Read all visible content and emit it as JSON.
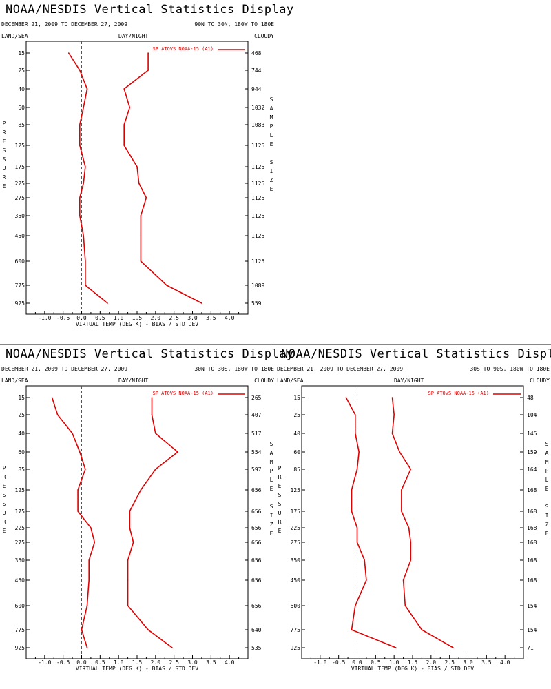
{
  "header": {
    "title": "NOAA/NESDIS Vertical Statistics Display",
    "date_range": "DECEMBER 21, 2009 TO DECEMBER 27, 2009",
    "land_sea": "LAND/SEA",
    "day_night": "DAY/NIGHT",
    "cloudy": "CLOUDY",
    "left_axis_label": "PRESSURE",
    "right_axis_label": "SAMPLE SIZE"
  },
  "chart_data": [
    {
      "type": "line",
      "region": "90N TO 30N, 180W TO 180E",
      "legend": "SP ATOVS NOAA-15 (A1)",
      "xlabel": "VIRTUAL TEMP (DEG K) - BIAS / STD DEV",
      "xlim": [
        -1.5,
        4.5
      ],
      "xticks": [
        "-1.0",
        "-0.5",
        "0.0",
        "0.5",
        "1.0",
        "1.5",
        "2.0",
        "2.5",
        "3.0",
        "3.5",
        "4.0"
      ],
      "pressure_levels": [
        "15",
        "25",
        "40",
        "60",
        "85",
        "125",
        "175",
        "225",
        "275",
        "350",
        "450",
        "600",
        "775",
        "925"
      ],
      "sample_size": [
        "468",
        "744",
        "944",
        "1032",
        "1083",
        "1125",
        "1125",
        "1125",
        "1125",
        "1125",
        "1125",
        "1125",
        "1089",
        "559"
      ],
      "series": [
        {
          "values": [
            -0.35,
            -0.05,
            0.15,
            0.05,
            -0.05,
            -0.05,
            0.1,
            0.05,
            -0.05,
            -0.05,
            0.05,
            0.1,
            0.1,
            0.7
          ]
        },
        {
          "values": [
            1.8,
            1.8,
            1.15,
            1.3,
            1.15,
            1.15,
            1.5,
            1.55,
            1.75,
            1.6,
            1.6,
            1.6,
            2.3,
            3.25
          ]
        }
      ]
    },
    {
      "type": "line",
      "region": "30N TO 30S, 180W TO 180E",
      "legend": "SP ATOVS NOAA-15 (A1)",
      "xlabel": "VIRTUAL TEMP (DEG K) - BIAS / STD DEV",
      "xlim": [
        -1.5,
        4.5
      ],
      "xticks": [
        "-1.0",
        "-0.5",
        "0.0",
        "0.5",
        "1.0",
        "1.5",
        "2.0",
        "2.5",
        "3.0",
        "3.5",
        "4.0"
      ],
      "pressure_levels": [
        "15",
        "25",
        "40",
        "60",
        "85",
        "125",
        "175",
        "225",
        "275",
        "350",
        "450",
        "600",
        "775",
        "925"
      ],
      "sample_size": [
        "265",
        "407",
        "517",
        "554",
        "597",
        "656",
        "656",
        "656",
        "656",
        "656",
        "656",
        "656",
        "640",
        "535"
      ],
      "series": [
        {
          "values": [
            -0.8,
            -0.65,
            -0.25,
            -0.05,
            0.1,
            -0.1,
            -0.1,
            0.25,
            0.35,
            0.2,
            0.2,
            0.15,
            0.0,
            0.15
          ]
        },
        {
          "values": [
            1.9,
            1.9,
            2.0,
            2.6,
            2.0,
            1.6,
            1.3,
            1.3,
            1.4,
            1.25,
            1.25,
            1.25,
            1.8,
            2.45
          ]
        }
      ]
    },
    {
      "type": "line",
      "region": "30S TO 90S, 180W TO 180E",
      "legend": "SP ATOVS NOAA-15 (A1)",
      "xlabel": "VIRTUAL TEMP (DEG K) - BIAS / STD DEV",
      "xlim": [
        -1.5,
        4.5
      ],
      "xticks": [
        "-1.0",
        "-0.5",
        "0.0",
        "0.5",
        "1.0",
        "1.5",
        "2.0",
        "2.5",
        "3.0",
        "3.5",
        "4.0"
      ],
      "pressure_levels": [
        "15",
        "25",
        "40",
        "60",
        "85",
        "125",
        "175",
        "225",
        "275",
        "350",
        "450",
        "600",
        "775",
        "925"
      ],
      "sample_size": [
        "48",
        "104",
        "145",
        "159",
        "164",
        "168",
        "168",
        "168",
        "168",
        "168",
        "168",
        "154",
        "154",
        "71"
      ],
      "series": [
        {
          "values": [
            -0.3,
            -0.05,
            -0.05,
            0.05,
            0.0,
            -0.15,
            -0.15,
            0.0,
            0.0,
            0.2,
            0.25,
            -0.05,
            -0.15,
            1.05
          ]
        },
        {
          "values": [
            0.95,
            1.0,
            0.95,
            1.15,
            1.45,
            1.2,
            1.2,
            1.4,
            1.45,
            1.45,
            1.25,
            1.3,
            1.75,
            2.6
          ]
        }
      ]
    }
  ]
}
